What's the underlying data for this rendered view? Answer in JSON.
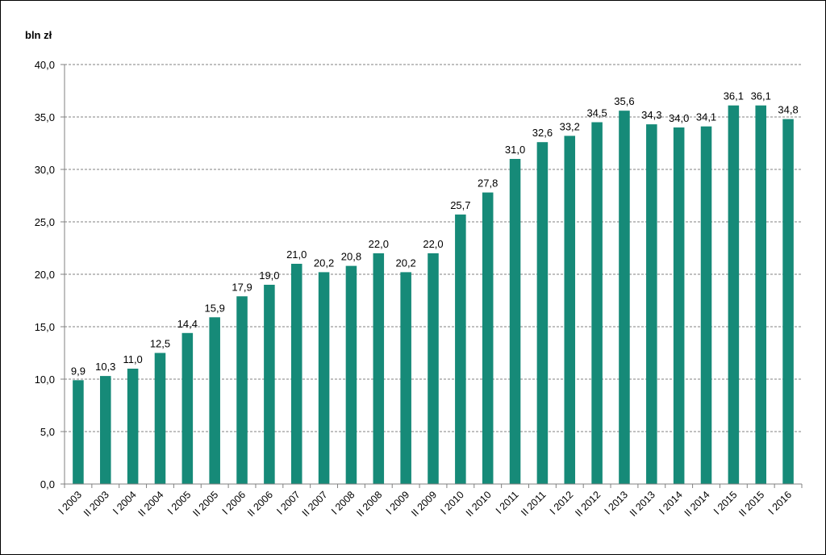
{
  "chart_data": {
    "type": "bar",
    "ylabel": "bln zł",
    "ylim": [
      0,
      40
    ],
    "yticks": [
      "0,0",
      "5,0",
      "10,0",
      "15,0",
      "20,0",
      "25,0",
      "30,0",
      "35,0",
      "40,0"
    ],
    "grid": true,
    "bar_color": "#168a78",
    "categories": [
      "I 2003",
      "II 2003",
      "I 2004",
      "II 2004",
      "I 2005",
      "II 2005",
      "I 2006",
      "II 2006",
      "I 2007",
      "II 2007",
      "I 2008",
      "II 2008",
      "I 2009",
      "II 2009",
      "I 2010",
      "II 2010",
      "I 2011",
      "II 2011",
      "I 2012",
      "II 2012",
      "I 2013",
      "II 2013",
      "I 2014",
      "II 2014",
      "I 2015",
      "II 2015",
      "I 2016"
    ],
    "values": [
      9.9,
      10.3,
      11.0,
      12.5,
      14.4,
      15.9,
      17.9,
      19.0,
      21.0,
      20.2,
      20.8,
      22.0,
      20.2,
      22.0,
      25.7,
      27.8,
      31.0,
      32.6,
      33.2,
      34.5,
      35.6,
      34.3,
      34.0,
      34.1,
      36.1,
      36.1,
      34.8
    ],
    "labels": [
      "9,9",
      "10,3",
      "11,0",
      "12,5",
      "14,4",
      "15,9",
      "17,9",
      "19,0",
      "21,0",
      "20,2",
      "20,8",
      "22,0",
      "20,2",
      "22,0",
      "25,7",
      "27,8",
      "31,0",
      "32,6",
      "33,2",
      "34,5",
      "35,6",
      "34,3",
      "34,0",
      "34,1",
      "36,1",
      "36,1",
      "34,8"
    ]
  }
}
